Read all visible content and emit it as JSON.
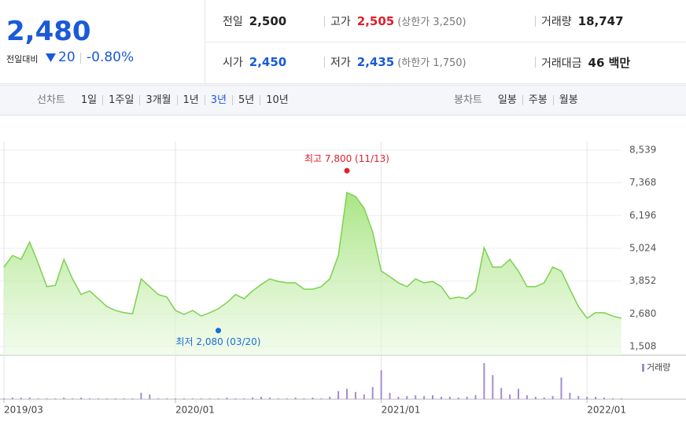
{
  "header": {
    "price": "2,480",
    "change_label": "전일대비",
    "change": "20",
    "change_rate": "-0.80%",
    "stats": [
      [
        {
          "label": "전일",
          "value": "2,500"
        },
        {
          "label": "고가",
          "value": "2,505",
          "note": "(상한가 3,250)"
        },
        {
          "label": "거래량",
          "value": "18,747"
        }
      ],
      [
        {
          "label": "시가",
          "value": "2,450"
        },
        {
          "label": "저가",
          "value": "2,435",
          "note": "(하한가 1,750)"
        },
        {
          "label": "거래대금",
          "value": "46 백만"
        }
      ]
    ]
  },
  "tabs": {
    "line_label": "선차트",
    "line": [
      "1일",
      "1주일",
      "3개월",
      "1년",
      "3년",
      "5년",
      "10년"
    ],
    "candle_label": "봉차트",
    "candle": [
      "일봉",
      "주봉",
      "월봉"
    ]
  },
  "chart_data": {
    "type": "line",
    "categories": [
      "2019/03",
      null,
      null,
      null,
      null,
      null,
      null,
      null,
      null,
      null,
      null,
      null,
      null,
      null,
      null,
      null,
      null,
      null,
      null,
      null,
      "2020/01",
      null,
      null,
      null,
      null,
      null,
      null,
      null,
      null,
      null,
      null,
      null,
      null,
      null,
      null,
      null,
      null,
      null,
      null,
      null,
      null,
      null,
      null,
      null,
      "2021/01",
      null,
      null,
      null,
      null,
      null,
      null,
      null,
      null,
      null,
      null,
      null,
      null,
      null,
      null,
      null,
      null,
      null,
      null,
      null,
      null,
      null,
      null,
      null,
      "2022/01",
      null,
      null,
      null,
      null
    ],
    "series": [
      {
        "color": "#7dd150",
        "values": [
          4350,
          4770,
          4630,
          5250,
          4490,
          3650,
          3700,
          4630,
          3930,
          3370,
          3500,
          3220,
          2940,
          2800,
          2720,
          2680,
          3930,
          3650,
          3370,
          3280,
          2800,
          2660,
          2800,
          2600,
          2720,
          2860,
          3080,
          3370,
          3220,
          3500,
          3730,
          3930,
          3840,
          3790,
          3790,
          3560,
          3560,
          3650,
          3930,
          4770,
          7020,
          6880,
          6460,
          5610,
          4210,
          4010,
          3790,
          3650,
          3930,
          3790,
          3840,
          3650,
          3220,
          3280,
          3220,
          3500,
          5050,
          4350,
          4350,
          4630,
          4210,
          3650,
          3650,
          3790,
          4350,
          4210,
          3560,
          2940,
          2520,
          2720,
          2720,
          2600,
          2520
        ]
      },
      {
        "name": "거래량",
        "color": "#a58bd0",
        "values": [
          1,
          2,
          2,
          2,
          1,
          1,
          1,
          2,
          1,
          2,
          1,
          1,
          1,
          1,
          1,
          1,
          8,
          6,
          1,
          1,
          1,
          1,
          1,
          1,
          1,
          1,
          2,
          1,
          1,
          2,
          3,
          2,
          1,
          1,
          2,
          1,
          2,
          1,
          3,
          10,
          13,
          9,
          6,
          15,
          36,
          8,
          3,
          4,
          5,
          4,
          5,
          3,
          3,
          2,
          3,
          5,
          45,
          30,
          14,
          6,
          13,
          5,
          3,
          2,
          4,
          27,
          8,
          4,
          3,
          3,
          2,
          1,
          1
        ]
      }
    ],
    "ylim": [
      1508,
      8539
    ],
    "yticks": [
      {
        "value": 8539,
        "label": "8,539"
      },
      {
        "value": 7368,
        "label": "7,368"
      },
      {
        "value": 6196,
        "label": "6,196"
      },
      {
        "value": 5024,
        "label": "5,024"
      },
      {
        "value": 3852,
        "label": "3,852"
      },
      {
        "value": 2680,
        "label": "2,680"
      },
      {
        "value": 1508,
        "label": "1,508"
      }
    ],
    "grid": true,
    "annotations": [
      {
        "text": "최고 7,800 (11/13)",
        "value": 7800,
        "at": 40,
        "color": "#e0202a"
      },
      {
        "text": "최저 2,080 (03/20)",
        "value": 2080,
        "at": 25,
        "color": "#1a6fd0"
      }
    ]
  }
}
